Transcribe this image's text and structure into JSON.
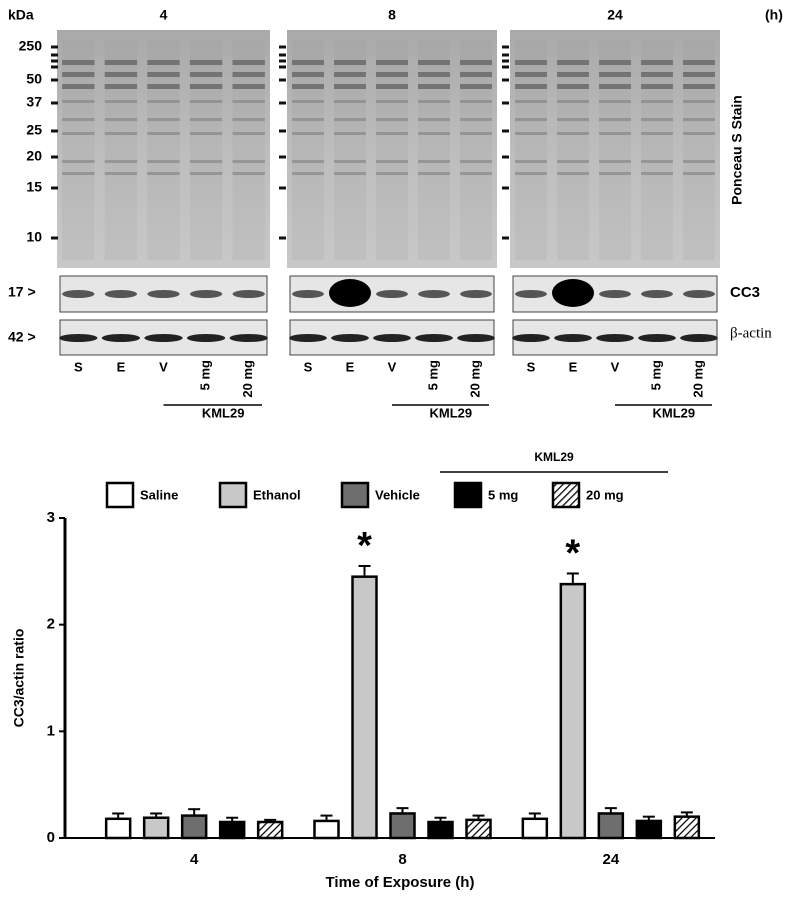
{
  "blot": {
    "kda_label": "kDa",
    "time_unit": "(h)",
    "time_points": [
      "4",
      "8",
      "24"
    ],
    "markers": [
      "250",
      "50",
      "37",
      "25",
      "20",
      "15",
      "10"
    ],
    "ponceau_label": "Ponceau S Stain",
    "cc3_marker": "17 >",
    "actin_marker": "42 >",
    "cc3_label": "CC3",
    "actin_label": "β-actin",
    "lanes": [
      "S",
      "E",
      "V",
      "5 mg",
      "20 mg"
    ],
    "group_label": "KML29"
  },
  "chart_data": {
    "type": "bar",
    "ylabel": "CC3/actin ratio",
    "xlabel": "Time of Exposure (h)",
    "legend_group": "KML29",
    "categories": [
      "4",
      "8",
      "24"
    ],
    "series": [
      {
        "name": "Saline",
        "color": "#ffffff",
        "values": [
          0.18,
          0.16,
          0.18
        ],
        "errors": [
          0.05,
          0.05,
          0.05
        ]
      },
      {
        "name": "Ethanol",
        "color": "#c8c8c8",
        "values": [
          0.19,
          2.45,
          2.38
        ],
        "errors": [
          0.04,
          0.1,
          0.1
        ]
      },
      {
        "name": "Vehicle",
        "color": "#6e6e6e",
        "values": [
          0.21,
          0.23,
          0.23
        ],
        "errors": [
          0.06,
          0.05,
          0.05
        ]
      },
      {
        "name": "5 mg",
        "color": "#000000",
        "values": [
          0.15,
          0.15,
          0.16
        ],
        "errors": [
          0.04,
          0.04,
          0.04
        ]
      },
      {
        "name": "20 mg",
        "color": "#000000",
        "pattern": "hatch",
        "values": [
          0.15,
          0.17,
          0.2
        ],
        "errors": [
          0.02,
          0.04,
          0.04
        ]
      }
    ],
    "annotations": [
      {
        "text": "*",
        "x": "8",
        "series": "Ethanol"
      },
      {
        "text": "*",
        "x": "24",
        "series": "Ethanol"
      }
    ],
    "ylim": [
      0,
      3
    ],
    "yticks": [
      0,
      1,
      2,
      3
    ]
  }
}
